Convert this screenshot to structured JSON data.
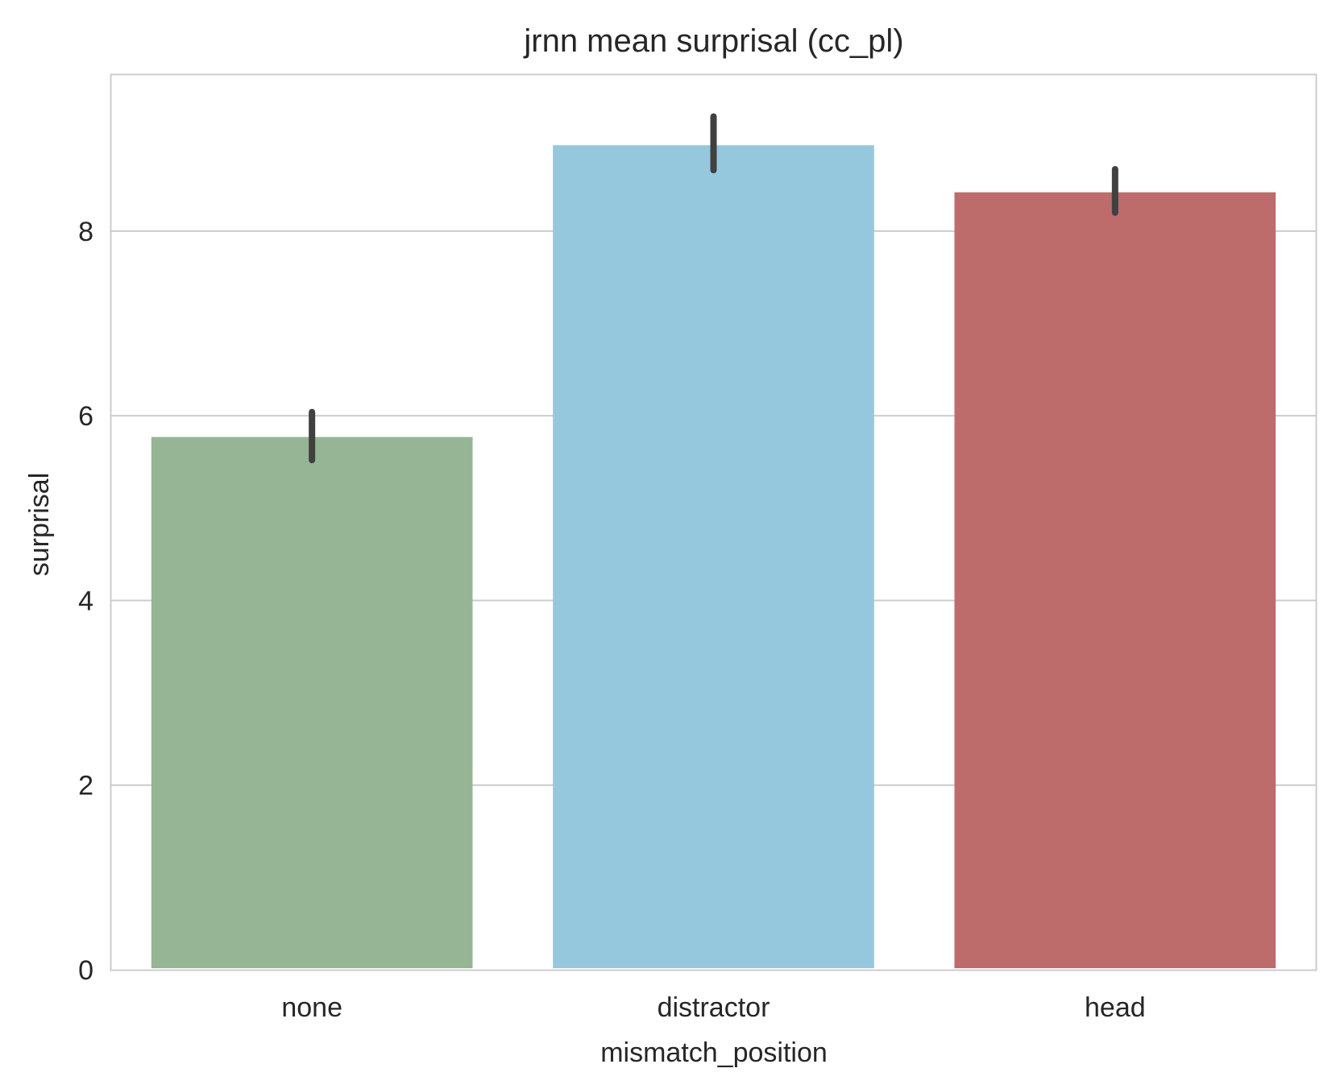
{
  "chart_data": {
    "type": "bar",
    "title": "jrnn mean surprisal (cc_pl)",
    "xlabel": "mismatch_position",
    "ylabel": "surprisal",
    "categories": [
      "none",
      "distractor",
      "head"
    ],
    "values": [
      5.77,
      8.93,
      8.42
    ],
    "error_bars": [
      {
        "low": 5.52,
        "high": 6.04
      },
      {
        "low": 8.66,
        "high": 9.24
      },
      {
        "low": 8.2,
        "high": 8.67
      }
    ],
    "colors": [
      "#96b594",
      "#96c8dd",
      "#be6b6c"
    ],
    "error_color": "#404040",
    "ylim": [
      0,
      9.7
    ],
    "yticks": [
      0,
      2,
      4,
      6,
      8
    ],
    "grid": true,
    "grid_axis": "y",
    "legend": "none"
  }
}
